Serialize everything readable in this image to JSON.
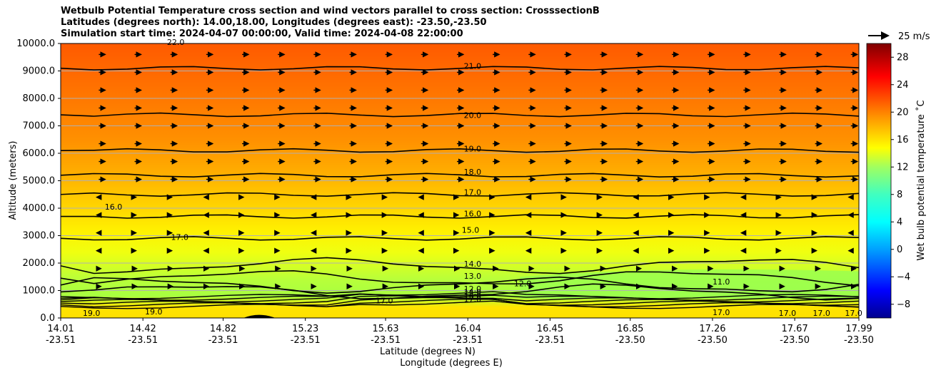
{
  "title_lines": [
    "Wetbulb Potential Temperature cross section and wind vectors parallel to cross section: CrosssectionB",
    "Latitudes (degrees north): 14.00,18.00, Longitudes (degrees east): -23.50,-23.50",
    "Simulation start time: 2024-04-07 00:00:00, Valid time: 2024-04-08 22:00:00"
  ],
  "chart_data": {
    "type": "heatmap",
    "subtype": "filled contour cross section with contour lines and wind vectors",
    "ylabel": "Altitude (meters)",
    "xlabel": "Latitude (degrees N)",
    "xlabel2": "Longitude (degrees E)",
    "ylim": [
      0,
      10000
    ],
    "xlim": [
      14.01,
      17.99
    ],
    "yticks": [
      "0.0",
      "1000.0",
      "2000.0",
      "3000.0",
      "4000.0",
      "5000.0",
      "6000.0",
      "7000.0",
      "8000.0",
      "9000.0",
      "10000.0"
    ],
    "ytick_values": [
      0,
      1000,
      2000,
      3000,
      4000,
      5000,
      6000,
      7000,
      8000,
      9000,
      10000
    ],
    "xticks_lat": [
      "14.01",
      "14.42",
      "14.82",
      "15.23",
      "15.63",
      "16.04",
      "16.45",
      "16.85",
      "17.26",
      "17.67",
      "17.99"
    ],
    "xticks_lon": [
      "-23.51",
      "-23.51",
      "-23.51",
      "-23.51",
      "-23.51",
      "-23.51",
      "-23.51",
      "-23.50",
      "-23.50",
      "-23.50",
      "-23.50"
    ],
    "xtick_values": [
      14.01,
      14.42,
      14.82,
      15.23,
      15.63,
      16.04,
      16.45,
      16.85,
      17.26,
      17.67,
      17.99
    ],
    "grid": true,
    "colorbar": {
      "label": "Wet bulb potential temperature ˚C",
      "range": [
        -10,
        30
      ],
      "ticks": [
        "−8",
        "−4",
        "0",
        "4",
        "8",
        "12",
        "16",
        "20",
        "24",
        "28"
      ],
      "tick_values": [
        -8,
        -4,
        0,
        4,
        8,
        12,
        16,
        20,
        24,
        28
      ]
    },
    "quiver_key": "25 m/s",
    "contours": [
      {
        "level": 21.0,
        "altitude": 9100
      },
      {
        "level": 20.0,
        "altitude": 7400
      },
      {
        "level": 19.0,
        "altitude": 6100
      },
      {
        "level": 18.0,
        "altitude": 5200
      },
      {
        "level": 17.0,
        "altitude": 4500
      },
      {
        "level": 16.0,
        "altitude": 3700
      },
      {
        "level": 15.0,
        "altitude": 2900
      },
      {
        "level": 14.0,
        "altitude": 1900
      },
      {
        "level": 13.0,
        "altitude": 1450
      },
      {
        "level": 12.0,
        "altitude": 950
      },
      {
        "level": 11.0,
        "altitude": 1200
      }
    ],
    "contour_labels": [
      {
        "text": "21.0",
        "lat": 16.02,
        "alt": 9080
      },
      {
        "text": "20.0",
        "lat": 16.02,
        "alt": 7280
      },
      {
        "text": "19.0",
        "lat": 16.02,
        "alt": 6070
      },
      {
        "text": "18.0",
        "lat": 16.02,
        "alt": 5220
      },
      {
        "text": "17.0",
        "lat": 16.02,
        "alt": 4480
      },
      {
        "text": "16.0",
        "lat": 16.02,
        "alt": 3700
      },
      {
        "text": "15.0",
        "lat": 16.01,
        "alt": 3100
      },
      {
        "text": "14.0",
        "lat": 16.02,
        "alt": 1870
      },
      {
        "text": "13.0",
        "lat": 16.02,
        "alt": 1430
      },
      {
        "text": "12.0",
        "lat": 16.02,
        "alt": 960
      },
      {
        "text": "14.0",
        "lat": 16.02,
        "alt": 840
      },
      {
        "text": "16.0",
        "lat": 16.02,
        "alt": 700
      },
      {
        "text": "17.0",
        "lat": 16.02,
        "alt": 580
      },
      {
        "text": "16.0",
        "lat": 14.23,
        "alt": 3950
      },
      {
        "text": "17.0",
        "lat": 14.56,
        "alt": 2850
      },
      {
        "text": "17.0",
        "lat": 15.58,
        "alt": 530
      },
      {
        "text": "12.0",
        "lat": 16.27,
        "alt": 1150
      },
      {
        "text": "11.0",
        "lat": 17.26,
        "alt": 1220
      },
      {
        "text": "19.0",
        "lat": 14.12,
        "alt": 80
      },
      {
        "text": "19.0",
        "lat": 14.43,
        "alt": 130
      },
      {
        "text": "17.0",
        "lat": 17.26,
        "alt": 100
      },
      {
        "text": "17.0",
        "lat": 17.59,
        "alt": 80
      },
      {
        "text": "17.0",
        "lat": 17.76,
        "alt": 80
      },
      {
        "text": "17.0",
        "lat": 17.92,
        "alt": 80
      },
      {
        "text": "22.0",
        "lat": 14.54,
        "alt": 9950
      }
    ]
  }
}
